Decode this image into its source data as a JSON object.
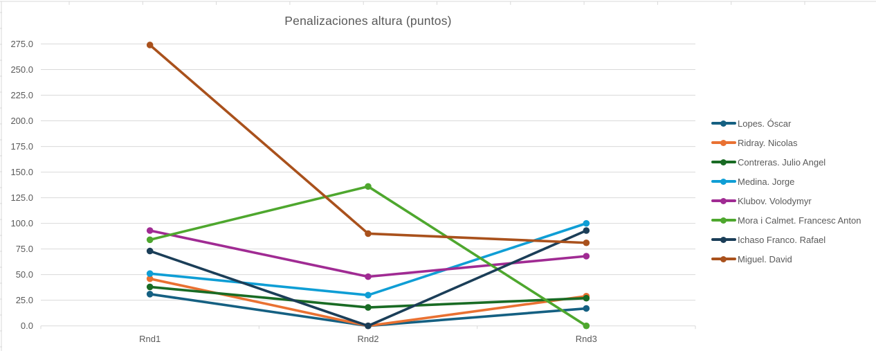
{
  "chart_data": {
    "type": "line",
    "title": "Penalizaciones altura (puntos)",
    "categories": [
      "Rnd1",
      "Rnd2",
      "Rnd3"
    ],
    "series": [
      {
        "name": "Lopes. Óscar",
        "color": "#156082",
        "values": [
          31,
          0,
          17
        ]
      },
      {
        "name": "Ridray. Nicolas",
        "color": "#E97132",
        "values": [
          46,
          0,
          29
        ]
      },
      {
        "name": "Contreras. Julio Angel",
        "color": "#196B24",
        "values": [
          38,
          18,
          27
        ]
      },
      {
        "name": "Medina. Jorge",
        "color": "#0F9ED5",
        "values": [
          51,
          30,
          100
        ]
      },
      {
        "name": "Klubov. Volodymyr",
        "color": "#A02B93",
        "values": [
          93,
          48,
          68
        ]
      },
      {
        "name": "Mora i Calmet. Francesc Anton",
        "color": "#4EA72E",
        "values": [
          84,
          136,
          0
        ]
      },
      {
        "name": "Ichaso Franco. Rafael",
        "color": "#1B3E58",
        "values": [
          73,
          0,
          93
        ]
      },
      {
        "name": "Miguel. David",
        "color": "#A9511C",
        "values": [
          274,
          90,
          81
        ]
      }
    ],
    "ylim": [
      0,
      275
    ],
    "ytick_step": 25,
    "ytick_decimals": 1,
    "grid": "horizontal",
    "legend_position": "right",
    "colors": {
      "gridline": "#D9D9D9",
      "axis_text": "#595959",
      "title_text": "#595959",
      "background": "#FFFFFF"
    }
  }
}
